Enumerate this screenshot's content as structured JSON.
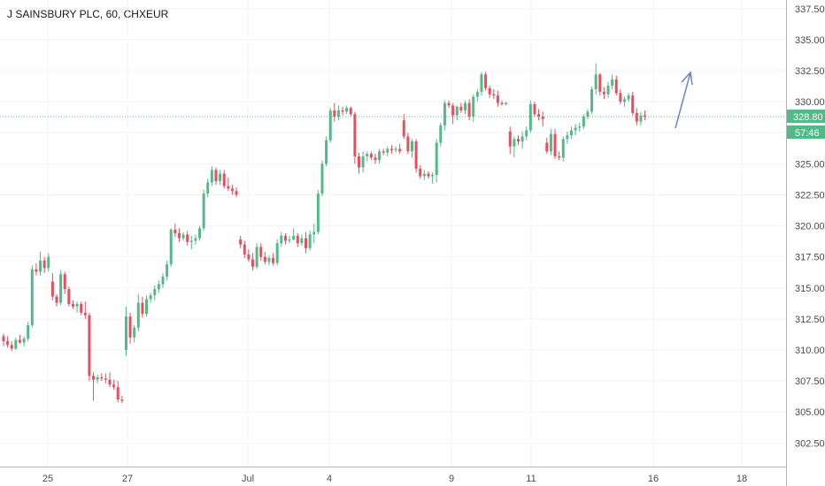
{
  "title": "J SAINSBURY PLC, 60, CHXEUR",
  "colors": {
    "up": "#53b987",
    "down": "#eb4d5c",
    "grid": "#f0f3fa",
    "price_line": "#53b987",
    "arrow": "#6c84c4"
  },
  "chart_data": {
    "type": "candlestick",
    "ylim": [
      300.6,
      338.2
    ],
    "y_ticks": [
      "302.50",
      "305.00",
      "307.50",
      "310.00",
      "312.50",
      "315.00",
      "317.50",
      "320.00",
      "322.50",
      "325.00",
      "327.50",
      "330.00",
      "332.50",
      "335.00",
      "337.50"
    ],
    "x_ticks": [
      "25",
      "27",
      "Jul",
      "4",
      "9",
      "11",
      "16",
      "18"
    ],
    "last_price": "328.80",
    "countdown": "57:46",
    "candles": [
      [
        311.1,
        311.3,
        310.3,
        310.7
      ],
      [
        310.7,
        311.1,
        310.2,
        310.4
      ],
      [
        310.4,
        310.7,
        309.9,
        310.1
      ],
      [
        310.1,
        311.0,
        310.0,
        310.8
      ],
      [
        310.8,
        311.2,
        310.5,
        310.6
      ],
      [
        310.6,
        311.1,
        310.3,
        310.9
      ],
      [
        310.9,
        312.3,
        310.7,
        312.0
      ],
      [
        312.0,
        316.8,
        311.8,
        316.5
      ],
      [
        316.5,
        317.0,
        316.0,
        316.3
      ],
      [
        316.3,
        317.9,
        316.0,
        317.2
      ],
      [
        317.2,
        317.5,
        316.2,
        316.6
      ],
      [
        316.6,
        317.8,
        316.3,
        317.5
      ],
      [
        315.5,
        316.2,
        314.0,
        314.3
      ],
      [
        314.3,
        314.5,
        313.5,
        313.8
      ],
      [
        313.8,
        316.4,
        313.6,
        316.1
      ],
      [
        316.1,
        316.3,
        314.5,
        314.9
      ],
      [
        314.9,
        315.1,
        313.5,
        313.7
      ],
      [
        313.7,
        314.0,
        313.3,
        313.5
      ],
      [
        313.5,
        313.9,
        313.0,
        313.7
      ],
      [
        313.7,
        313.9,
        312.8,
        313.0
      ],
      [
        313.0,
        313.9,
        312.5,
        312.8
      ],
      [
        312.8,
        313.0,
        307.5,
        307.9
      ],
      [
        307.9,
        308.2,
        305.9,
        307.6
      ],
      [
        307.6,
        308.0,
        307.3,
        307.8
      ],
      [
        307.8,
        308.1,
        307.5,
        307.7
      ],
      [
        307.7,
        308.1,
        307.3,
        307.6
      ],
      [
        307.6,
        308.2,
        307.0,
        307.2
      ],
      [
        307.2,
        307.6,
        306.8,
        307.0
      ],
      [
        307.0,
        307.5,
        305.8,
        306.0
      ],
      [
        306.0,
        306.3,
        305.7,
        305.9
      ],
      [
        310.0,
        313.5,
        309.5,
        312.7
      ],
      [
        312.7,
        313.0,
        310.5,
        311.0
      ],
      [
        311.0,
        312.0,
        310.6,
        311.8
      ],
      [
        311.8,
        314.5,
        311.5,
        313.8
      ],
      [
        313.8,
        314.3,
        312.6,
        312.9
      ],
      [
        312.9,
        314.4,
        312.7,
        314.1
      ],
      [
        314.1,
        314.6,
        313.8,
        314.4
      ],
      [
        314.4,
        315.2,
        314.0,
        314.9
      ],
      [
        314.9,
        315.6,
        314.6,
        315.3
      ],
      [
        315.3,
        316.2,
        315.0,
        315.9
      ],
      [
        315.9,
        317.2,
        315.6,
        316.9
      ],
      [
        316.9,
        319.8,
        316.7,
        319.7
      ],
      [
        319.7,
        320.2,
        319.1,
        319.4
      ],
      [
        319.4,
        319.8,
        318.7,
        319.0
      ],
      [
        319.0,
        319.5,
        318.8,
        319.3
      ],
      [
        319.3,
        319.6,
        318.4,
        318.7
      ],
      [
        318.7,
        319.2,
        318.1,
        318.8
      ],
      [
        318.8,
        319.3,
        318.5,
        319.0
      ],
      [
        319.0,
        320.0,
        318.8,
        319.8
      ],
      [
        319.8,
        322.9,
        319.6,
        322.6
      ],
      [
        322.6,
        323.8,
        322.3,
        323.5
      ],
      [
        323.5,
        324.8,
        323.2,
        324.5
      ],
      [
        324.5,
        324.7,
        323.3,
        323.6
      ],
      [
        323.6,
        324.5,
        323.3,
        324.2
      ],
      [
        324.2,
        324.5,
        323.0,
        323.2
      ],
      [
        323.2,
        323.9,
        322.8,
        323.0
      ],
      [
        323.0,
        323.3,
        322.5,
        322.8
      ],
      [
        322.8,
        323.1,
        322.3,
        322.5
      ],
      [
        318.9,
        319.2,
        318.2,
        318.5
      ],
      [
        318.5,
        318.8,
        317.4,
        317.7
      ],
      [
        317.7,
        318.1,
        317.1,
        317.3
      ],
      [
        317.3,
        317.8,
        316.4,
        316.7
      ],
      [
        316.7,
        318.6,
        316.5,
        318.3
      ],
      [
        318.3,
        318.6,
        317.2,
        317.5
      ],
      [
        317.5,
        317.9,
        316.9,
        317.1
      ],
      [
        317.1,
        317.6,
        316.8,
        317.4
      ],
      [
        317.4,
        317.8,
        316.8,
        317.0
      ],
      [
        317.0,
        318.9,
        316.8,
        318.6
      ],
      [
        318.6,
        319.5,
        318.3,
        319.2
      ],
      [
        319.2,
        319.4,
        318.5,
        318.8
      ],
      [
        318.8,
        319.2,
        318.6,
        318.9
      ],
      [
        318.9,
        319.8,
        318.8,
        319.2
      ],
      [
        319.2,
        319.4,
        318.3,
        318.6
      ],
      [
        318.6,
        319.3,
        318.4,
        319.0
      ],
      [
        319.0,
        319.5,
        317.8,
        318.2
      ],
      [
        318.2,
        319.6,
        318.0,
        319.3
      ],
      [
        319.3,
        320.2,
        318.6,
        319.5
      ],
      [
        319.5,
        322.9,
        319.3,
        322.6
      ],
      [
        322.6,
        325.3,
        322.4,
        325.0
      ],
      [
        325.0,
        327.2,
        324.8,
        326.9
      ],
      [
        326.9,
        329.5,
        326.7,
        329.3
      ],
      [
        329.3,
        329.9,
        328.4,
        328.8
      ],
      [
        328.8,
        329.7,
        328.5,
        329.3
      ],
      [
        329.3,
        329.6,
        328.9,
        329.2
      ],
      [
        329.2,
        329.7,
        329.0,
        329.5
      ],
      [
        329.5,
        329.6,
        328.8,
        329.0
      ],
      [
        329.0,
        329.2,
        325.0,
        325.6
      ],
      [
        325.6,
        325.9,
        324.2,
        324.7
      ],
      [
        324.7,
        326.0,
        324.3,
        325.6
      ],
      [
        325.6,
        326.0,
        325.2,
        325.8
      ],
      [
        325.8,
        326.0,
        325.3,
        325.5
      ],
      [
        325.5,
        325.8,
        325.0,
        325.3
      ],
      [
        325.3,
        326.2,
        325.0,
        326.0
      ],
      [
        326.0,
        326.2,
        325.7,
        325.9
      ],
      [
        325.9,
        326.4,
        325.6,
        326.2
      ],
      [
        326.2,
        326.5,
        325.8,
        326.1
      ],
      [
        326.1,
        326.4,
        325.9,
        326.2
      ],
      [
        326.2,
        326.6,
        325.8,
        326.0
      ],
      [
        328.5,
        329.0,
        327.0,
        327.2
      ],
      [
        327.2,
        327.5,
        325.8,
        326.0
      ],
      [
        326.0,
        327.0,
        325.5,
        326.8
      ],
      [
        326.8,
        327.0,
        324.3,
        324.6
      ],
      [
        324.6,
        324.9,
        323.8,
        324.0
      ],
      [
        324.0,
        324.5,
        323.7,
        324.2
      ],
      [
        324.2,
        324.4,
        323.8,
        324.0
      ],
      [
        324.0,
        324.3,
        323.4,
        324.1
      ],
      [
        324.1,
        327.0,
        323.5,
        326.7
      ],
      [
        326.7,
        328.3,
        326.4,
        328.1
      ],
      [
        328.1,
        330.1,
        327.7,
        329.9
      ],
      [
        329.9,
        330.1,
        329.5,
        329.7
      ],
      [
        329.7,
        329.9,
        328.2,
        328.9
      ],
      [
        328.9,
        329.7,
        328.5,
        329.6
      ],
      [
        329.6,
        329.9,
        329.1,
        329.3
      ],
      [
        329.3,
        330.1,
        329.0,
        329.9
      ],
      [
        329.9,
        330.2,
        328.5,
        328.8
      ],
      [
        328.8,
        330.6,
        328.4,
        330.4
      ],
      [
        330.4,
        331.0,
        330.0,
        330.8
      ],
      [
        330.8,
        332.4,
        330.5,
        332.2
      ],
      [
        332.2,
        332.4,
        330.9,
        331.1
      ],
      [
        331.1,
        331.3,
        330.3,
        330.6
      ],
      [
        330.6,
        331.0,
        330.2,
        330.5
      ],
      [
        330.5,
        330.9,
        329.6,
        329.9
      ],
      [
        329.9,
        330.1,
        329.7,
        329.8
      ],
      [
        329.8,
        330.0,
        329.7,
        329.9
      ],
      [
        327.6,
        328.0,
        325.8,
        326.4
      ],
      [
        326.4,
        327.2,
        325.5,
        327.0
      ],
      [
        327.0,
        327.3,
        326.5,
        326.8
      ],
      [
        326.8,
        327.6,
        326.2,
        327.2
      ],
      [
        327.2,
        328.0,
        326.9,
        327.7
      ],
      [
        327.7,
        330.1,
        327.5,
        329.8
      ],
      [
        329.8,
        330.0,
        328.8,
        329.0
      ],
      [
        329.0,
        329.4,
        328.5,
        328.8
      ],
      [
        328.8,
        329.2,
        328.0,
        328.6
      ],
      [
        326.7,
        327.1,
        325.8,
        326.0
      ],
      [
        326.0,
        327.8,
        325.7,
        327.4
      ],
      [
        327.4,
        327.8,
        325.4,
        325.6
      ],
      [
        325.6,
        326.0,
        325.3,
        325.5
      ],
      [
        325.5,
        327.2,
        325.2,
        327.0
      ],
      [
        327.0,
        327.6,
        326.6,
        327.3
      ],
      [
        327.3,
        328.0,
        327.0,
        327.7
      ],
      [
        327.7,
        328.2,
        327.3,
        327.9
      ],
      [
        327.9,
        328.3,
        327.6,
        328.0
      ],
      [
        328.0,
        329.0,
        327.8,
        328.8
      ],
      [
        328.8,
        329.4,
        328.6,
        329.2
      ],
      [
        329.2,
        331.2,
        329.0,
        331.0
      ],
      [
        331.0,
        333.1,
        330.6,
        332.2
      ],
      [
        332.2,
        332.3,
        330.5,
        330.8
      ],
      [
        330.8,
        331.2,
        330.2,
        330.6
      ],
      [
        330.6,
        331.6,
        330.3,
        331.3
      ],
      [
        331.3,
        332.2,
        331.0,
        331.8
      ],
      [
        331.8,
        332.1,
        330.5,
        330.7
      ],
      [
        330.7,
        331.0,
        329.8,
        330.0
      ],
      [
        330.0,
        330.4,
        329.6,
        330.2
      ],
      [
        330.2,
        330.7,
        330.0,
        330.5
      ],
      [
        330.5,
        330.8,
        328.9,
        329.1
      ],
      [
        329.1,
        329.5,
        328.1,
        328.4
      ],
      [
        328.4,
        329.2,
        328.1,
        328.9
      ],
      [
        328.9,
        329.3,
        328.5,
        328.8
      ]
    ]
  }
}
